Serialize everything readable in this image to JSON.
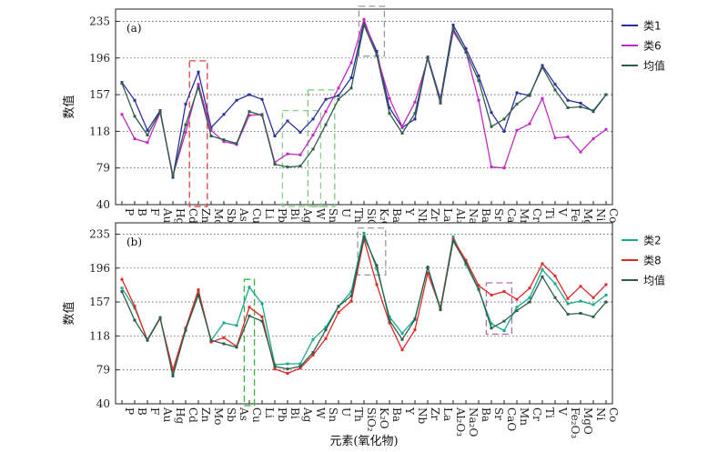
{
  "chart_data": [
    {
      "type": "line",
      "panel_label": "(a)",
      "ylabel": "数值",
      "xlabel": "",
      "ylim": [
        40,
        248
      ],
      "yticks": [
        "40",
        "79",
        "118",
        "157",
        "196",
        "235"
      ],
      "grid": "horizontal-dotted",
      "legend": "right",
      "x": [
        "P",
        "B",
        "F",
        "Au",
        "Hg",
        "Cd",
        "Zn",
        "Mo",
        "Sb",
        "As",
        "Cu",
        "Li",
        "Pb",
        "Bi",
        "Ag",
        "W",
        "Sn",
        "U",
        "Th",
        "SiO₂",
        "K₂O",
        "Ba",
        "Y",
        "Nb",
        "Zr",
        "La",
        "Al₂O₃",
        "Na₂O",
        "Ba",
        "Sr",
        "CaO",
        "Mn",
        "Cr",
        "Ti",
        "V",
        "Fe₂O₃",
        "MgO",
        "Ni",
        "Co"
      ],
      "series": [
        {
          "name": "类1",
          "color": "#2b2f9e",
          "values": [
            170,
            151,
            119,
            140,
            69,
            147,
            181,
            122,
            136,
            151,
            157,
            152,
            113,
            129,
            117,
            131,
            152,
            156,
            175,
            234,
            203,
            143,
            122,
            131,
            197,
            152,
            231,
            206,
            177,
            138,
            118,
            159,
            156,
            188,
            168,
            151,
            148,
            139,
            157
          ]
        },
        {
          "name": "类6",
          "color": "#c02ac0",
          "values": [
            136,
            110,
            106,
            138,
            71,
            117,
            168,
            119,
            107,
            104,
            135,
            136,
            85,
            94,
            93,
            114,
            139,
            164,
            191,
            237,
            199,
            153,
            123,
            149,
            195,
            150,
            224,
            203,
            151,
            80,
            79,
            119,
            126,
            153,
            111,
            112,
            96,
            110,
            120
          ]
        },
        {
          "name": "均值",
          "color": "#2c5e48",
          "values": [
            169,
            134,
            114,
            139,
            70,
            125,
            165,
            113,
            109,
            105,
            139,
            135,
            83,
            80,
            81,
            99,
            125,
            152,
            164,
            231,
            199,
            137,
            116,
            137,
            197,
            148,
            227,
            202,
            172,
            123,
            131,
            147,
            157,
            186,
            162,
            143,
            144,
            140,
            157
          ]
        }
      ]
    },
    {
      "type": "line",
      "panel_label": "(b)",
      "ylabel": "数值",
      "xlabel": "元素(氧化物)",
      "ylim": [
        40,
        248
      ],
      "yticks": [
        "40",
        "79",
        "118",
        "157",
        "196",
        "235"
      ],
      "grid": "horizontal-dotted",
      "legend": "right",
      "x": [
        "P",
        "B",
        "F",
        "Au",
        "Hg",
        "Cd",
        "Zn",
        "Mo",
        "Sb",
        "As",
        "Cu",
        "Li",
        "Pb",
        "Bi",
        "Ag",
        "W",
        "Sn",
        "U",
        "Th",
        "SiO₂",
        "K₂O",
        "Ba",
        "Y",
        "Nb",
        "Zr",
        "La",
        "Al₂O₃",
        "Na₂O",
        "Ba",
        "Sr",
        "CaO",
        "Mn",
        "Cr",
        "Ti",
        "V",
        "Fe₂O₃",
        "MgO",
        "Ni",
        "Co"
      ],
      "series": [
        {
          "name": "类2",
          "color": "#1aa88c",
          "values": [
            173,
            150,
            114,
            139,
            75,
            124,
            169,
            113,
            133,
            130,
            174,
            155,
            85,
            86,
            86,
            114,
            128,
            152,
            169,
            236,
            195,
            140,
            121,
            138,
            197,
            150,
            232,
            200,
            171,
            132,
            124,
            151,
            162,
            194,
            178,
            155,
            158,
            154,
            165
          ]
        },
        {
          "name": "类8",
          "color": "#e02828",
          "values": [
            183,
            152,
            113,
            138,
            79,
            127,
            171,
            111,
            116,
            106,
            151,
            140,
            80,
            75,
            81,
            96,
            115,
            145,
            158,
            229,
            177,
            133,
            102,
            125,
            190,
            150,
            229,
            205,
            176,
            165,
            169,
            160,
            173,
            201,
            187,
            161,
            175,
            162,
            177
          ]
        },
        {
          "name": "均值",
          "color": "#2c5e48",
          "values": [
            169,
            136,
            113,
            139,
            72,
            125,
            165,
            113,
            109,
            105,
            141,
            135,
            83,
            80,
            83,
            99,
            125,
            152,
            164,
            232,
            199,
            136,
            114,
            137,
            197,
            148,
            227,
            202,
            172,
            127,
            135,
            147,
            157,
            186,
            162,
            143,
            144,
            140,
            157
          ]
        }
      ]
    }
  ]
}
